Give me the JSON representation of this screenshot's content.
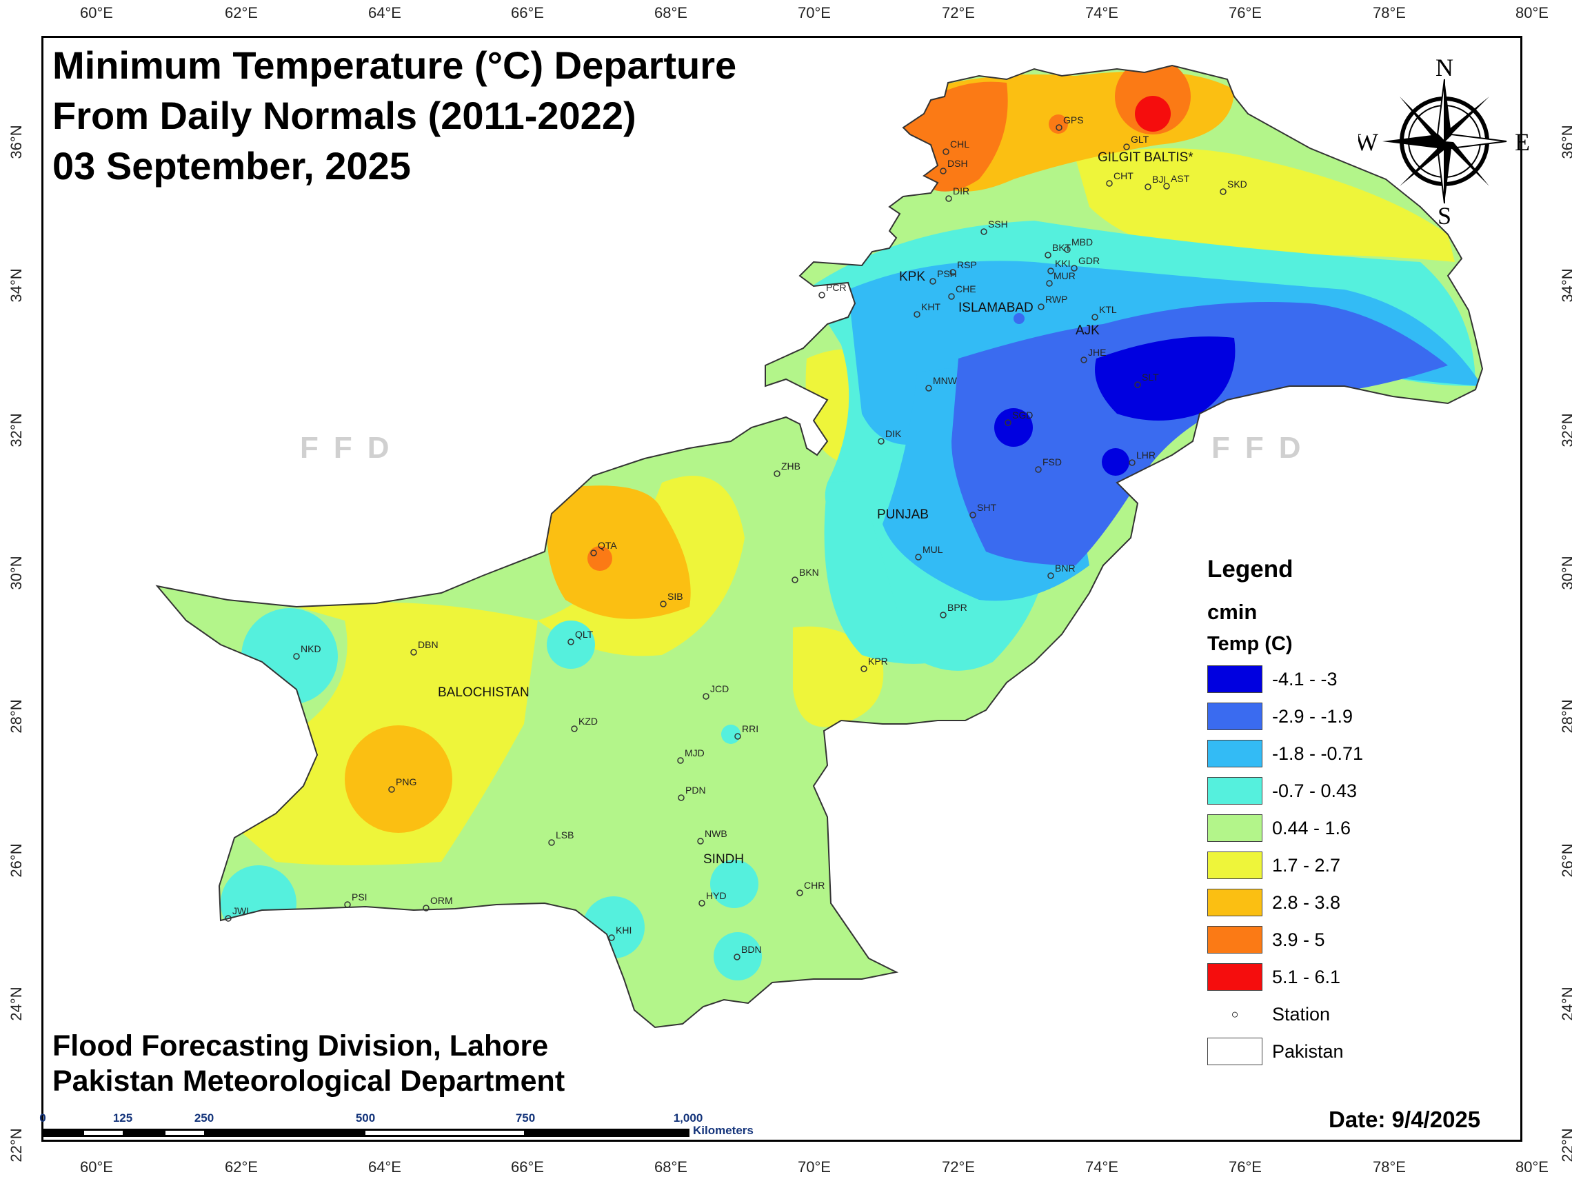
{
  "title": {
    "line1": "Minimum Temperature (°C) Departure",
    "line2": "From Daily Normals (2011-2022)",
    "line3": "03 September, 2025"
  },
  "credits": {
    "line1": "Flood Forecasting Division, Lahore",
    "line2": "Pakistan Meteorological Department"
  },
  "date": "Date: 9/4/2025",
  "watermark": "FFD",
  "compass": {
    "n": "N",
    "s": "S",
    "e": "E",
    "w": "W"
  },
  "longitude_ticks": [
    "60°E",
    "62°E",
    "64°E",
    "66°E",
    "68°E",
    "70°E",
    "72°E",
    "74°E",
    "76°E",
    "78°E",
    "80°E"
  ],
  "latitude_ticks": [
    "36°N",
    "34°N",
    "32°N",
    "30°N",
    "28°N",
    "26°N",
    "24°N",
    "22°N"
  ],
  "scale_bar": {
    "labels": [
      "0",
      "125",
      "250",
      "500",
      "750",
      "1,000"
    ],
    "unit": "Kilometers"
  },
  "legend": {
    "heading": "Legend",
    "layer": "cmin",
    "field": "Temp (C)",
    "classes": [
      {
        "label": "-4.1 - -3",
        "color": "#0000e0"
      },
      {
        "label": "-2.9 - -1.9",
        "color": "#3a6bf0"
      },
      {
        "label": "-1.8 - -0.71",
        "color": "#33bbf5"
      },
      {
        "label": "-0.7 - 0.43",
        "color": "#55f0dd"
      },
      {
        "label": "0.44 - 1.6",
        "color": "#b3f58a"
      },
      {
        "label": "1.7 - 2.7",
        "color": "#eef53a"
      },
      {
        "label": "2.8 - 3.8",
        "color": "#fbbf12"
      },
      {
        "label": "3.9 - 5",
        "color": "#fb7a15"
      },
      {
        "label": "5.1 - 6.1",
        "color": "#f50d0d"
      }
    ],
    "station_label": "Station",
    "boundary_label": "Pakistan"
  },
  "regions": [
    "GILGIT BALTIS*",
    "KPK",
    "ISLAMABAD",
    "AJK",
    "PUNJAB",
    "BALOCHISTAN",
    "SINDH"
  ],
  "stations": [
    "CHL",
    "DSH",
    "DIR",
    "GPS",
    "GLT",
    "CHT",
    "BJI",
    "AST",
    "SKD",
    "SSH",
    "BKT",
    "MBD",
    "KKI",
    "GDR",
    "PSH",
    "RSP",
    "CHE",
    "MUR",
    "PCR",
    "KHT",
    "RWP",
    "KTL",
    "JHE",
    "MNW",
    "SLT",
    "SGD",
    "DIK",
    "FSD",
    "LHR",
    "ZHB",
    "SHT",
    "QTA",
    "MUL",
    "BKN",
    "SIB",
    "BNR",
    "BPR",
    "QLT",
    "NKD",
    "DBN",
    "KPR",
    "JCD",
    "KZD",
    "RRI",
    "MJD",
    "PNG",
    "PDN",
    "NWB",
    "LSB",
    "CHR",
    "HYD",
    "PSI",
    "ORM",
    "JWI",
    "KHI",
    "BDN"
  ]
}
